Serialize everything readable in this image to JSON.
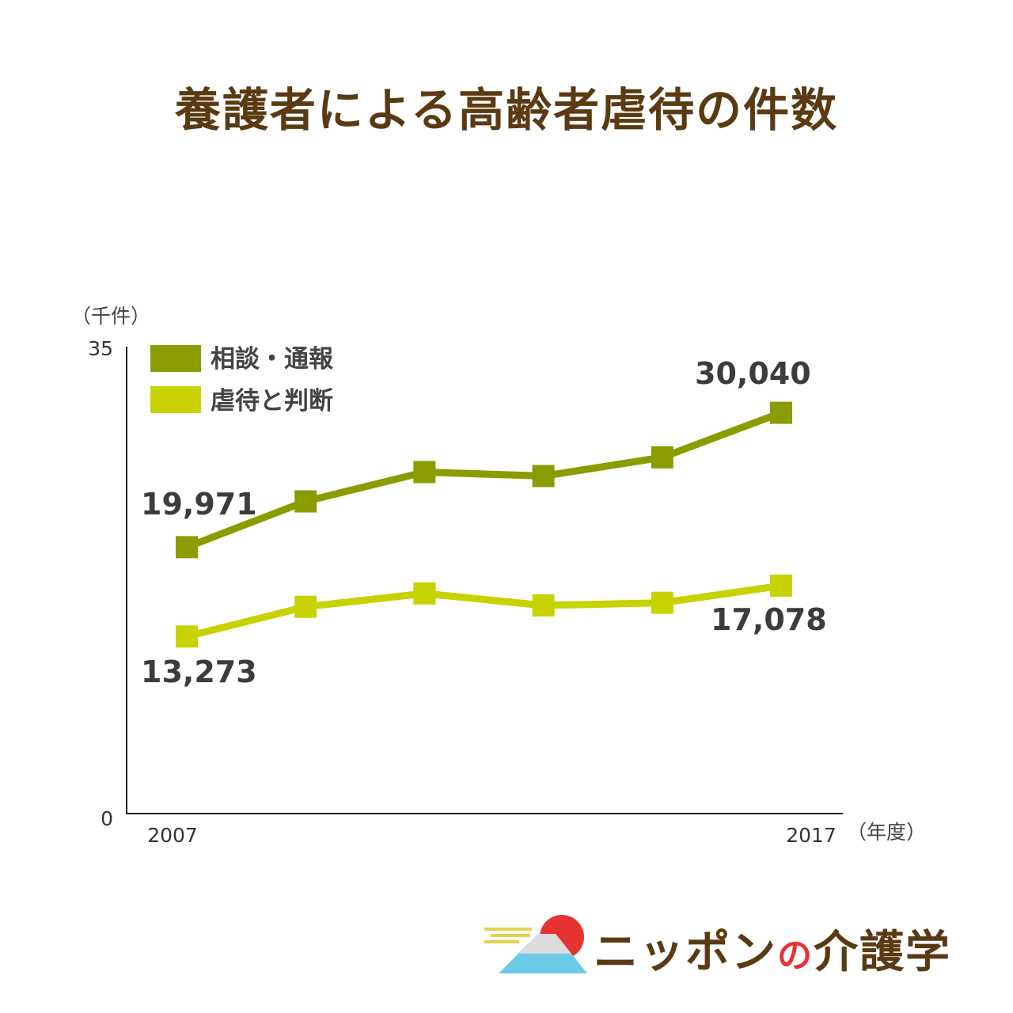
{
  "chart_data": {
    "type": "line",
    "title": "養護者による高齢者虐待の件数",
    "ylabel": "（千件）",
    "xlabel": "（年度）",
    "ylim": [
      0,
      35
    ],
    "ytick_labels": [
      "35",
      "0"
    ],
    "xtick_labels": [
      "2007",
      "2017"
    ],
    "x": [
      2007,
      2009,
      2011,
      2013,
      2015,
      2017
    ],
    "legend_position": "top-left",
    "series": [
      {
        "name": "相談・通報",
        "color": "#8a9c00",
        "values": [
          19.971,
          23.4,
          25.6,
          25.3,
          26.7,
          30.04
        ],
        "labels": {
          "first": "19,971",
          "last": "30,040"
        }
      },
      {
        "name": "虐待と判断",
        "color": "#c8d200",
        "values": [
          13.273,
          15.5,
          16.5,
          15.6,
          15.8,
          17.078
        ],
        "labels": {
          "first": "13,273",
          "last": "17,078"
        }
      }
    ]
  },
  "logo": {
    "name_part1": "ニッポン",
    "name_part2": "の",
    "name_part3": "介護学"
  }
}
